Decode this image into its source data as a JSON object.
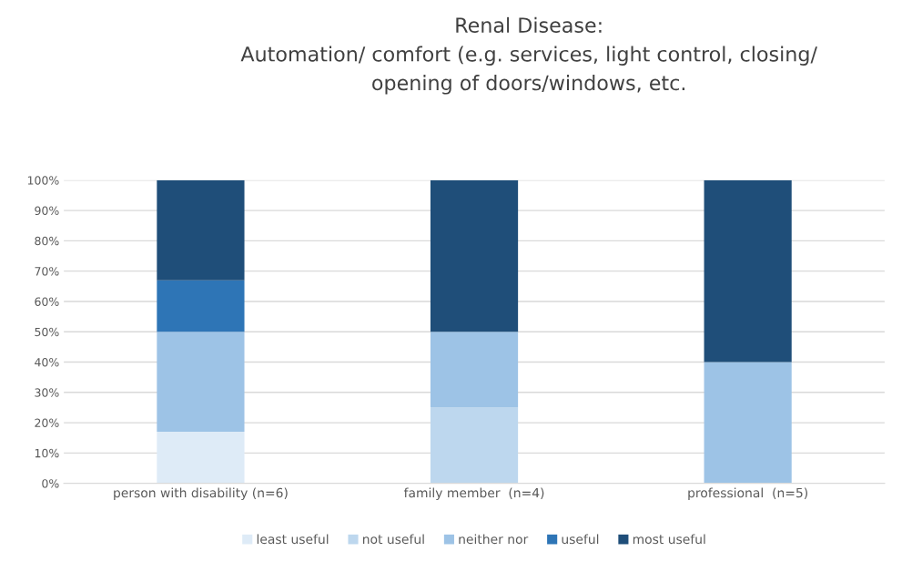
{
  "chart_data": {
    "type": "bar",
    "stacked": true,
    "title": "Renal Disease:\nAutomation/ comfort (e.g. services, light control, closing/\nopening of doors/windows, etc.",
    "categories": [
      "person with disability (n=6)",
      "family member  (n=4)",
      "professional  (n=5)"
    ],
    "series": [
      {
        "name": "least useful",
        "color": "#deebf7",
        "values": [
          17,
          0,
          0
        ]
      },
      {
        "name": "not useful",
        "color": "#bdd7ee",
        "values": [
          0,
          25,
          0
        ]
      },
      {
        "name": "neither nor",
        "color": "#9dc3e6",
        "values": [
          33,
          25,
          40
        ]
      },
      {
        "name": "useful",
        "color": "#2e75b6",
        "values": [
          17,
          0,
          0
        ]
      },
      {
        "name": "most useful",
        "color": "#1f4e79",
        "values": [
          33,
          50,
          60
        ]
      }
    ],
    "ylim": [
      0,
      100
    ],
    "yticks": [
      {
        "value": 0,
        "label": "0%"
      },
      {
        "value": 10,
        "label": "10%"
      },
      {
        "value": 20,
        "label": "20%"
      },
      {
        "value": 30,
        "label": "30%"
      },
      {
        "value": 40,
        "label": "40%"
      },
      {
        "value": 50,
        "label": "50%"
      },
      {
        "value": 60,
        "label": "60%"
      },
      {
        "value": 70,
        "label": "70%"
      },
      {
        "value": 80,
        "label": "80%"
      },
      {
        "value": 90,
        "label": "90%"
      },
      {
        "value": 100,
        "label": "100%"
      }
    ],
    "grid": "y",
    "legend": "bottom"
  }
}
